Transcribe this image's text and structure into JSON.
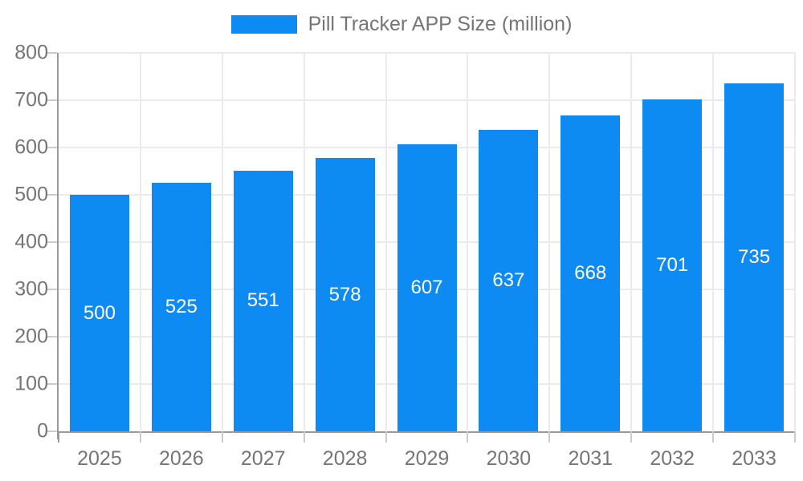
{
  "chart_data": {
    "type": "bar",
    "title": "Pill Tracker APP Size (million)",
    "legend": {
      "label": "Pill Tracker APP Size (million)",
      "position": "top"
    },
    "categories": [
      "2025",
      "2026",
      "2027",
      "2028",
      "2029",
      "2030",
      "2031",
      "2032",
      "2033"
    ],
    "values": [
      500,
      525,
      551,
      578,
      607,
      637,
      668,
      701,
      735
    ],
    "bar_labels": [
      "500",
      "525",
      "551",
      "578",
      "607",
      "637",
      "668",
      "701",
      "735"
    ],
    "xlabel": "",
    "ylabel": "",
    "ylim": [
      0,
      800
    ],
    "yticks": [
      0,
      100,
      200,
      300,
      400,
      500,
      600,
      700,
      800
    ],
    "grid": "both",
    "legend_position": "top-center",
    "colors": {
      "bar": "#0d8bf2",
      "bar_label": "#ffffff",
      "axis": "#999999",
      "grid": "#ebebeb",
      "tick": "#cccccc",
      "tick_label": "#757575",
      "legend_text": "#757575",
      "background": "#ffffff"
    }
  }
}
